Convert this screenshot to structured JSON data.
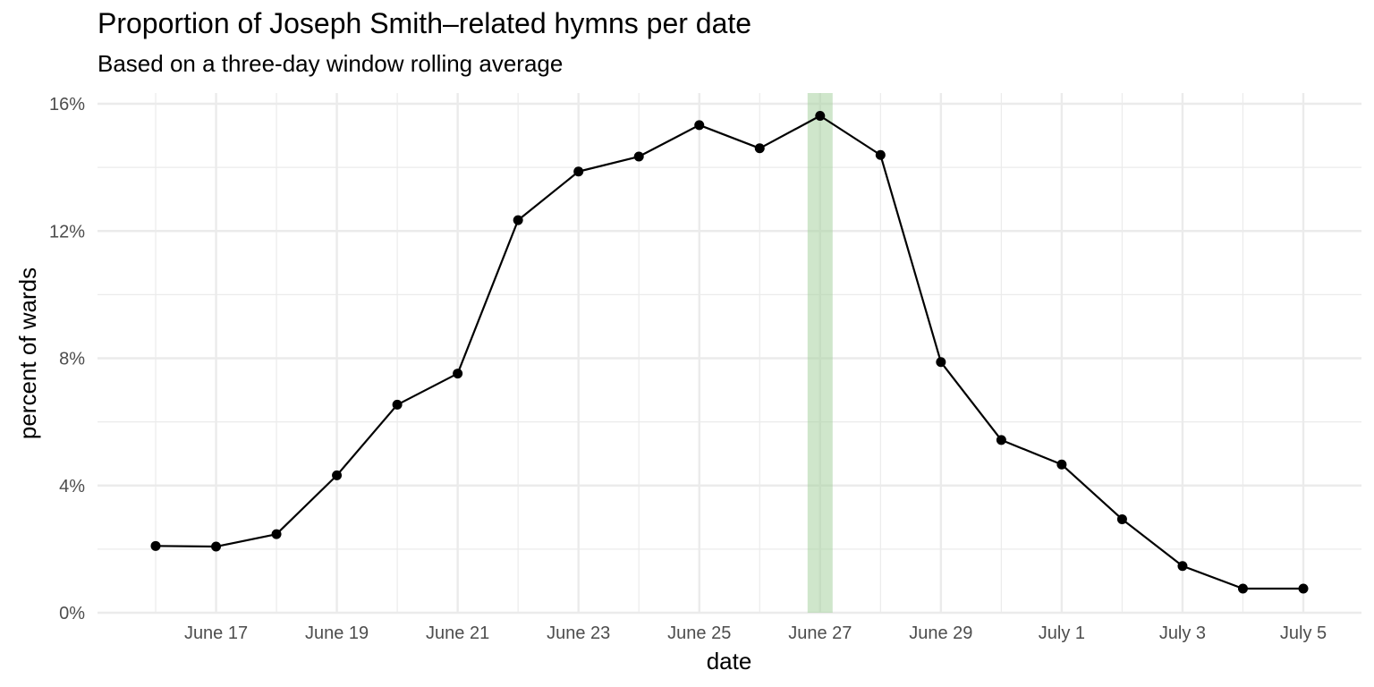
{
  "chart_data": {
    "type": "line",
    "title": "Proportion of Joseph Smith–related hymns per date",
    "subtitle": "Based on a three-day window rolling average",
    "xlabel": "date",
    "ylabel": "percent of wards",
    "x": [
      "June 16",
      "June 17",
      "June 18",
      "June 19",
      "June 20",
      "June 21",
      "June 22",
      "June 23",
      "June 24",
      "June 25",
      "June 26",
      "June 27",
      "June 28",
      "June 29",
      "June 30",
      "July 1",
      "July 2",
      "July 3",
      "July 4",
      "July 5"
    ],
    "x_ticks": [
      "June 17",
      "June 19",
      "June 21",
      "June 23",
      "June 25",
      "June 27",
      "June 29",
      "July 1",
      "July 3",
      "July 5"
    ],
    "y_ticks": [
      "0%",
      "4%",
      "8%",
      "12%",
      "16%"
    ],
    "ylim": [
      0,
      16
    ],
    "series": [
      {
        "values": [
          2.1,
          2.08,
          2.47,
          4.32,
          6.54,
          7.52,
          12.34,
          13.87,
          14.34,
          15.33,
          14.6,
          15.62,
          14.39,
          7.88,
          5.43,
          4.66,
          2.94,
          1.47,
          0.76,
          0.76
        ]
      }
    ],
    "highlight": {
      "x": "June 27",
      "color": "#a8d1a0"
    },
    "grid": true,
    "line_color": "#000000",
    "grid_color": "#ebebeb"
  }
}
